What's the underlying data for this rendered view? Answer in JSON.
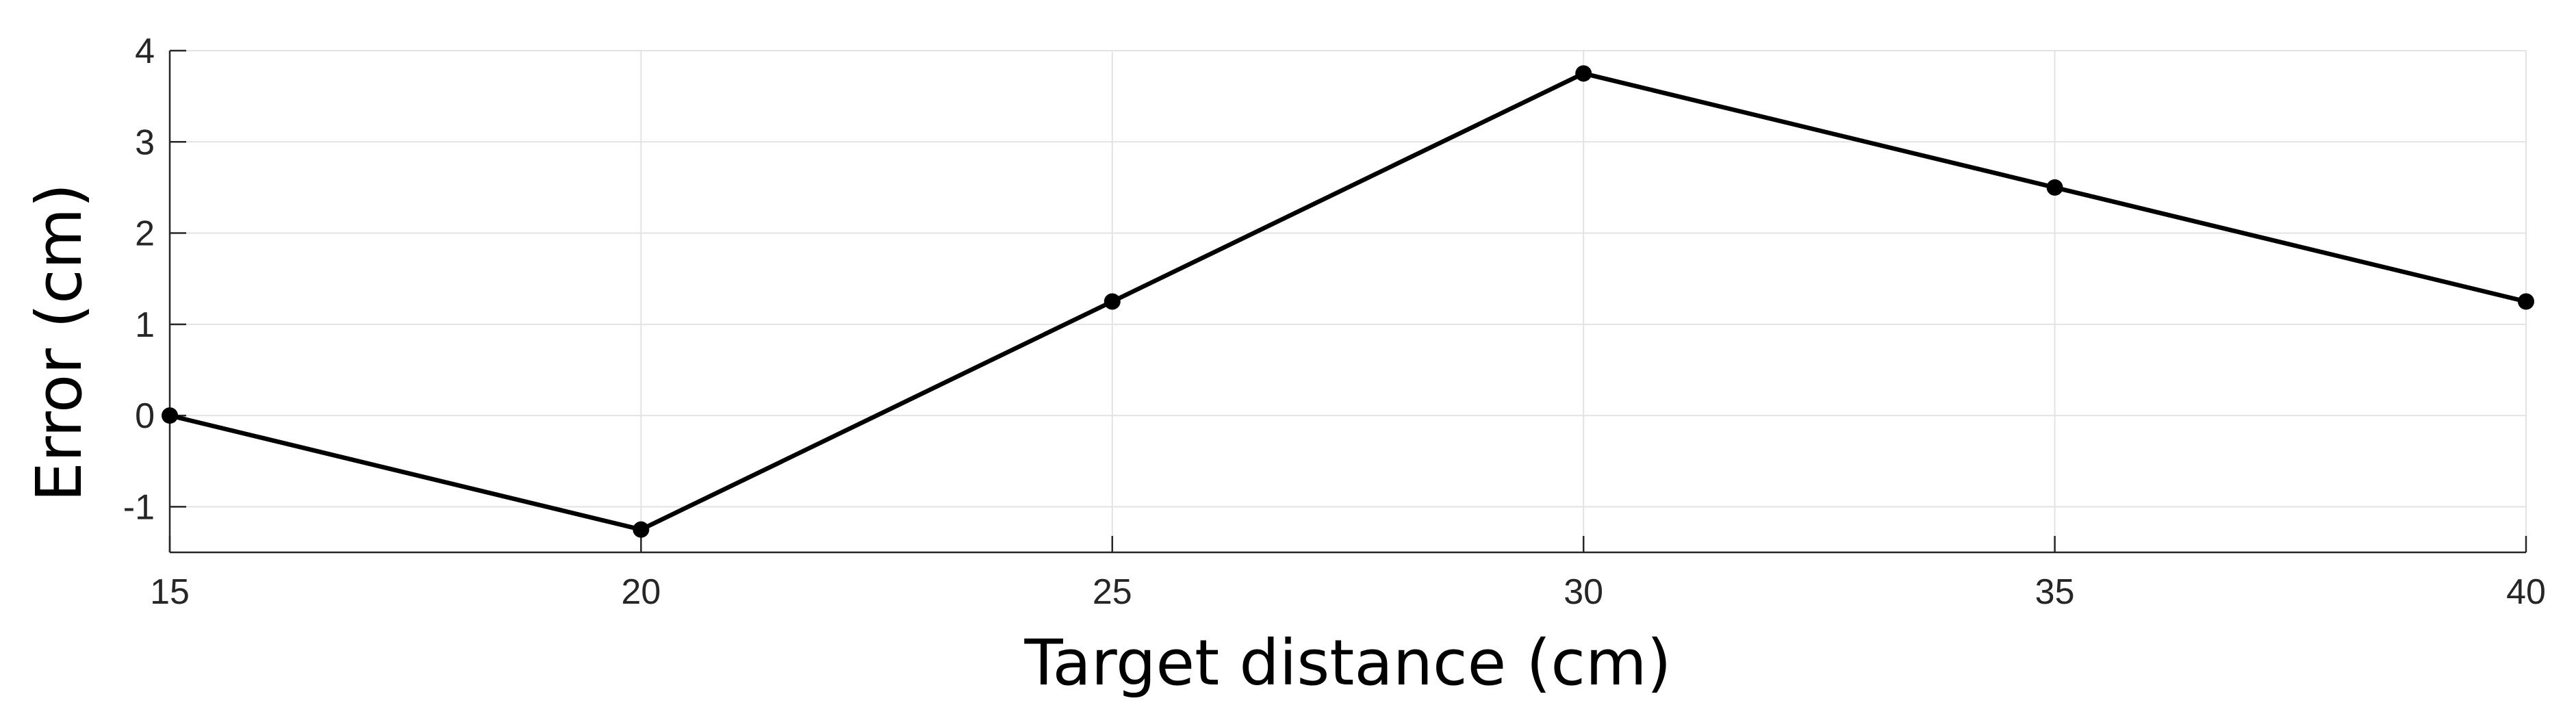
{
  "chart_data": {
    "type": "line",
    "title": "",
    "xlabel": "Target distance (cm)",
    "ylabel": "Error (cm)",
    "x": [
      15,
      20,
      25,
      30,
      35,
      40
    ],
    "series": [
      {
        "values": [
          0,
          -1.25,
          1.25,
          3.75,
          2.5,
          1.25
        ],
        "color": "#000000",
        "marker": "filled-circle"
      }
    ],
    "xlim": [
      15,
      40
    ],
    "ylim": [
      -1.5,
      4
    ],
    "xticks": [
      15,
      20,
      25,
      30,
      35,
      40
    ],
    "xtick_labels": [
      "15",
      "20",
      "25",
      "30",
      "35",
      "40"
    ],
    "yticks": [
      -1,
      0,
      1,
      2,
      3,
      4
    ],
    "ytick_labels": [
      "-1",
      "0",
      "1",
      "2",
      "3",
      "4"
    ],
    "grid": true,
    "legend": "none"
  }
}
